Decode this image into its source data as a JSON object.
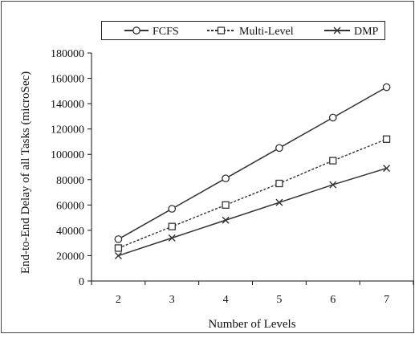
{
  "chart_data": {
    "type": "line",
    "title": "",
    "xlabel": "Number of Levels",
    "ylabel": "End-to-End Delay of all Tasks (microSec)",
    "x": [
      2,
      3,
      4,
      5,
      6,
      7
    ],
    "xlim": [
      1.5,
      7.5
    ],
    "ylim": [
      0,
      180000
    ],
    "y_ticks": [
      0,
      20000,
      40000,
      60000,
      80000,
      100000,
      120000,
      140000,
      160000,
      180000
    ],
    "grid": false,
    "legend_position": "top",
    "series": [
      {
        "name": "FCFS",
        "values": [
          33000,
          57000,
          81000,
          105000,
          129000,
          153000
        ],
        "marker": "circle",
        "line_style": "solid",
        "color": "#333333"
      },
      {
        "name": "Multi-Level",
        "values": [
          26000,
          43000,
          60000,
          77000,
          95000,
          112000
        ],
        "marker": "square",
        "line_style": "dotted",
        "color": "#333333"
      },
      {
        "name": "DMP",
        "values": [
          20000,
          34000,
          48000,
          62000,
          76000,
          89000
        ],
        "marker": "x",
        "line_style": "solid",
        "color": "#333333"
      }
    ]
  }
}
